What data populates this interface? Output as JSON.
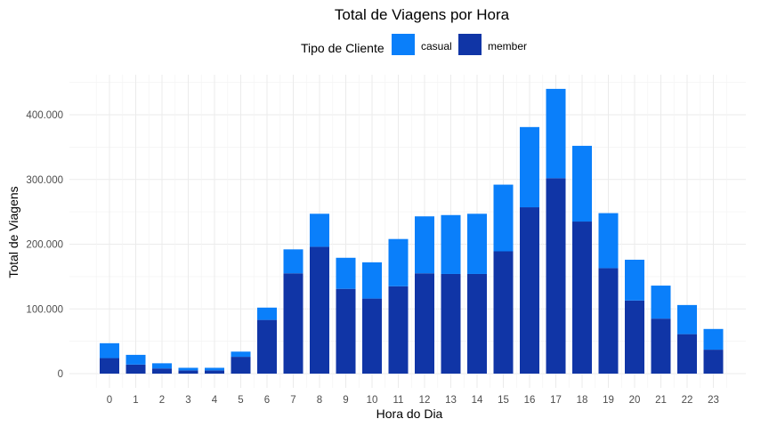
{
  "chart_data": {
    "type": "bar",
    "stacked": true,
    "title": "Total de Viagens por Hora",
    "xlabel": "Hora do Dia",
    "ylabel": "Total de Viagens",
    "legend": {
      "title": "Tipo de Cliente",
      "position": "top"
    },
    "ylim": [
      0,
      460000
    ],
    "yticks": [
      0,
      100000,
      200000,
      300000,
      400000
    ],
    "ytick_labels": [
      "0",
      "100.000",
      "200.000",
      "300.000",
      "400.000"
    ],
    "categories": [
      "0",
      "1",
      "2",
      "3",
      "4",
      "5",
      "6",
      "7",
      "8",
      "9",
      "10",
      "11",
      "12",
      "13",
      "14",
      "15",
      "16",
      "17",
      "18",
      "19",
      "20",
      "21",
      "22",
      "23"
    ],
    "series": [
      {
        "name": "casual",
        "color": "#0a7ffa",
        "values": [
          23000,
          15000,
          8000,
          4000,
          4000,
          8000,
          19000,
          37000,
          51000,
          48000,
          56000,
          73000,
          88000,
          91000,
          93000,
          103000,
          124000,
          138000,
          117000,
          85000,
          63000,
          51000,
          45000,
          32000
        ]
      },
      {
        "name": "member",
        "color": "#1035a6",
        "values": [
          24000,
          14000,
          8000,
          5000,
          5000,
          26000,
          83000,
          155000,
          196000,
          131000,
          116000,
          135000,
          155000,
          154000,
          154000,
          189000,
          257000,
          302000,
          235000,
          163000,
          113000,
          85000,
          61000,
          37000
        ]
      }
    ],
    "grid": true
  }
}
